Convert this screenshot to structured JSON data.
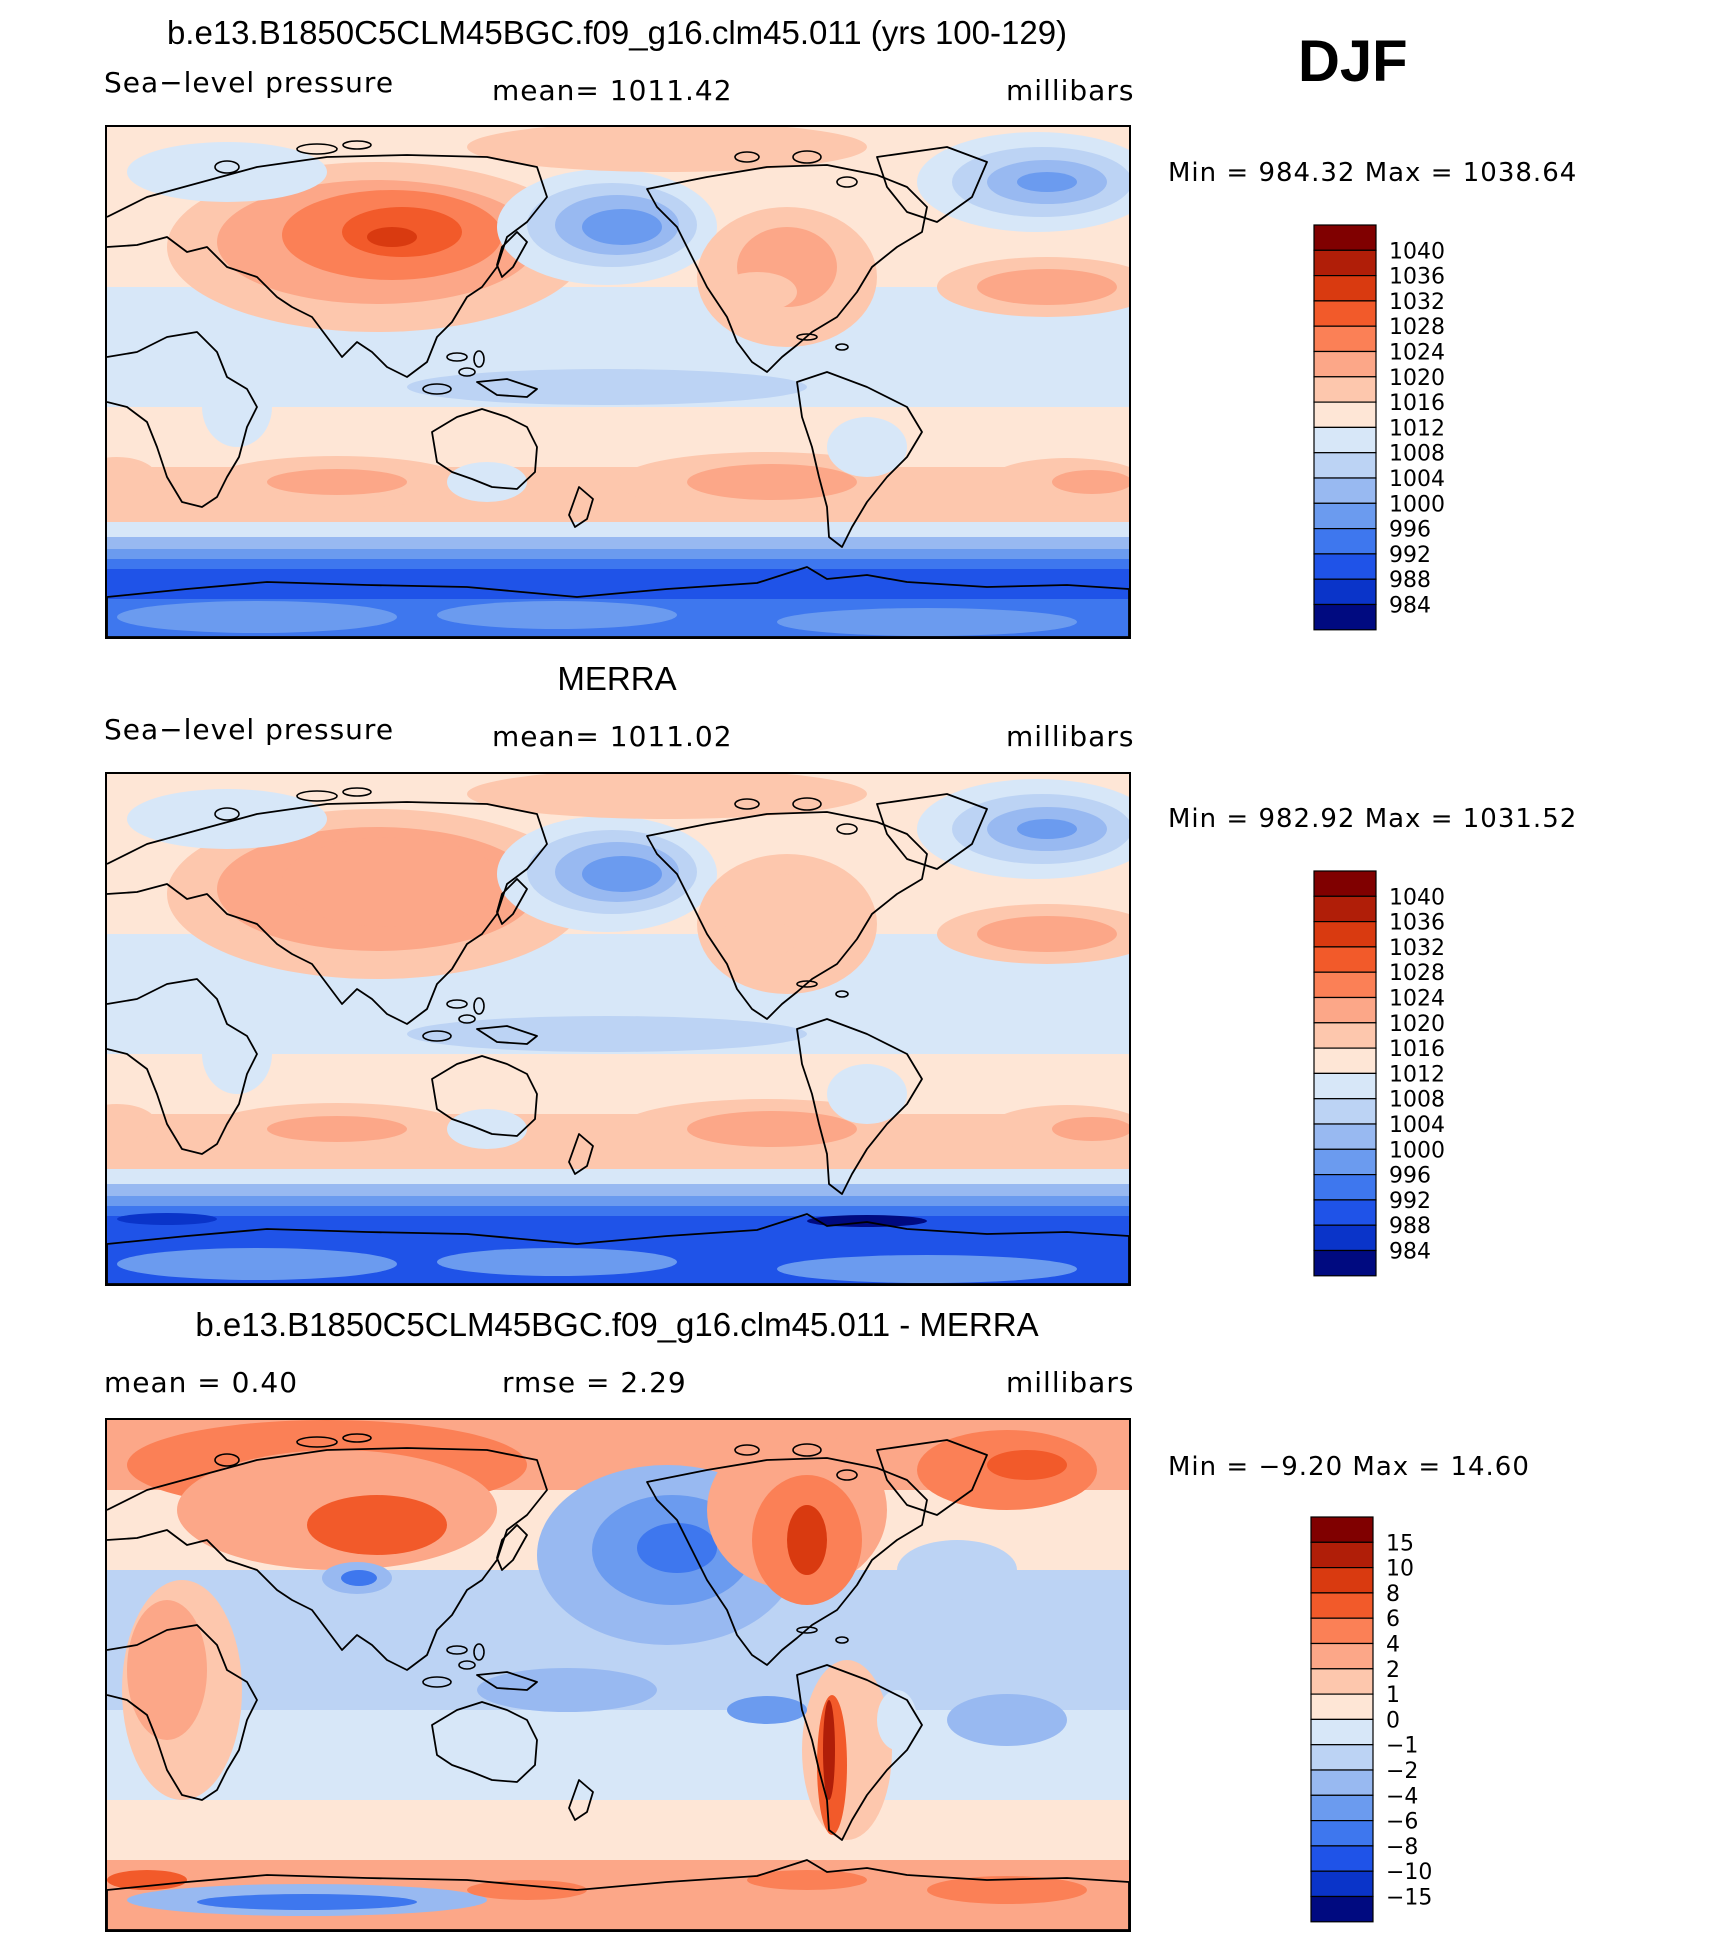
{
  "season": "DJF",
  "panels": [
    {
      "title": "b.e13.B1850C5CLM45BGC.f09_g16.clm45.011 (yrs 100-129)",
      "left": "Sea−level pressure",
      "mid": "mean=  1011.42",
      "right": "millibars",
      "minmax": "Min  =  984.32  Max  =  1038.64",
      "kind": "field",
      "legend": {
        "labels": [
          "1040",
          "1036",
          "1032",
          "1028",
          "1024",
          "1020",
          "1016",
          "1012",
          "1008",
          "1004",
          "1000",
          "996",
          "992",
          "988",
          "984"
        ],
        "colors": [
          "#800000",
          "#b01e08",
          "#d93a10",
          "#f25a2a",
          "#fb8056",
          "#fca788",
          "#fdc7ad",
          "#fee6d6",
          "#d7e7f8",
          "#bcd3f4",
          "#98b9f1",
          "#6b9bef",
          "#3e77ee",
          "#1f53e8",
          "#0a34c9",
          "#000a80"
        ]
      }
    },
    {
      "title": "MERRA",
      "left": "Sea−level pressure",
      "mid": "mean=  1011.02",
      "right": "millibars",
      "minmax": "Min  =  982.92  Max  =  1031.52",
      "kind": "field",
      "legend": {
        "labels": [
          "1040",
          "1036",
          "1032",
          "1028",
          "1024",
          "1020",
          "1016",
          "1012",
          "1008",
          "1004",
          "1000",
          "996",
          "992",
          "988",
          "984"
        ],
        "colors": [
          "#800000",
          "#b01e08",
          "#d93a10",
          "#f25a2a",
          "#fb8056",
          "#fca788",
          "#fdc7ad",
          "#fee6d6",
          "#d7e7f8",
          "#bcd3f4",
          "#98b9f1",
          "#6b9bef",
          "#3e77ee",
          "#1f53e8",
          "#0a34c9",
          "#000a80"
        ]
      }
    },
    {
      "title": "b.e13.B1850C5CLM45BGC.f09_g16.clm45.011 - MERRA",
      "left": "mean  =     0.40",
      "mid": "rmse  =     2.29",
      "right": "millibars",
      "minmax": "Min  =    −9.20  Max  =    14.60",
      "kind": "diff",
      "legend": {
        "labels": [
          "15",
          "10",
          "8",
          "6",
          "4",
          "2",
          "1",
          "0",
          "−1",
          "−2",
          "−4",
          "−6",
          "−8",
          "−10",
          "−15"
        ],
        "colors": [
          "#800000",
          "#b01e08",
          "#d93a10",
          "#f25a2a",
          "#fb8056",
          "#fca788",
          "#fdc7ad",
          "#fee6d6",
          "#d7e7f8",
          "#bcd3f4",
          "#98b9f1",
          "#6b9bef",
          "#3e77ee",
          "#1f53e8",
          "#0a34c9",
          "#000a80"
        ]
      }
    }
  ]
}
